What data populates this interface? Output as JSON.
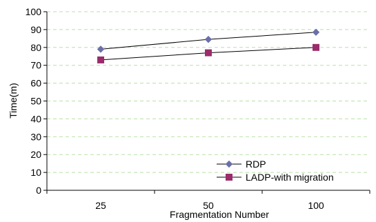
{
  "chart_data": {
    "type": "line",
    "categories": [
      "25",
      "50",
      "100"
    ],
    "series": [
      {
        "name": "RDP",
        "values": [
          79,
          84.5,
          88.5
        ],
        "color": "#6b6fa8",
        "marker": "diamond"
      },
      {
        "name": "LADP-with migration",
        "values": [
          73,
          77,
          80
        ],
        "color": "#9b2c6c",
        "marker": "square"
      }
    ],
    "xlabel": "Fragmentation Number",
    "ylabel": "Time(m)",
    "ylim": [
      0,
      100
    ],
    "yticks": [
      0,
      10,
      20,
      30,
      40,
      50,
      60,
      70,
      80,
      90,
      100
    ],
    "grid": true,
    "grid_color": "#b8e0a8",
    "legend_position": "bottom-right"
  }
}
